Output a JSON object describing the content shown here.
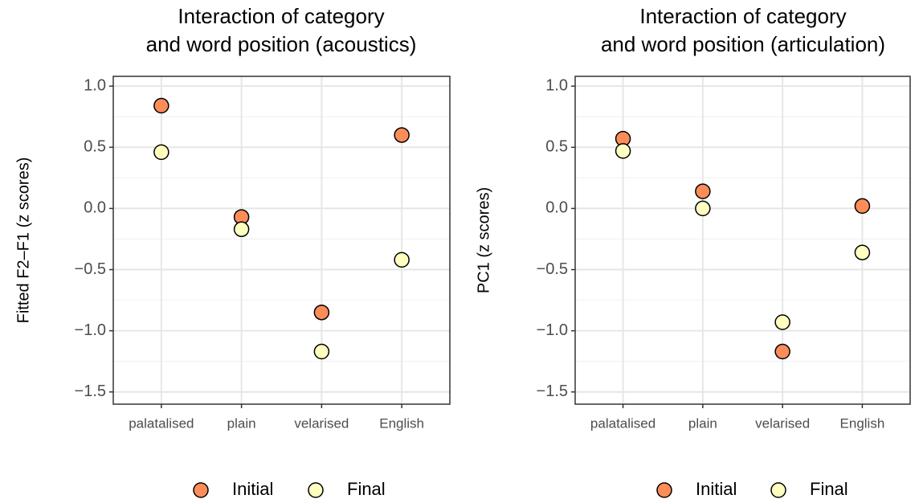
{
  "chart_data": [
    {
      "type": "scatter",
      "title": [
        "Interaction of category",
        "and word position (acoustics)"
      ],
      "y_label": "Fitted F2–F1 (z scores)",
      "categories": [
        "palatalised",
        "plain",
        "velarised",
        "English"
      ],
      "series": [
        {
          "name": "Initial",
          "color": "#fc8d59",
          "values": [
            0.84,
            -0.07,
            -0.85,
            0.6
          ]
        },
        {
          "name": "Final",
          "color": "#ffffbf",
          "values": [
            0.46,
            -0.17,
            -1.17,
            -0.42
          ]
        }
      ],
      "ylim": [
        -1.6,
        1.08
      ],
      "yticks": [
        {
          "value": 1.0,
          "label": "1.0"
        },
        {
          "value": 0.5,
          "label": "0.5"
        },
        {
          "value": 0.0,
          "label": "0.0"
        },
        {
          "value": -0.5,
          "label": "−0.5"
        },
        {
          "value": -1.0,
          "label": "−1.0"
        },
        {
          "value": -1.5,
          "label": "−1.5"
        }
      ],
      "grid": true,
      "legend": "bottom"
    },
    {
      "type": "scatter",
      "title": [
        "Interaction of category",
        "and word position (articulation)"
      ],
      "y_label": "PC1 (z scores)",
      "categories": [
        "palatalised",
        "plain",
        "velarised",
        "English"
      ],
      "series": [
        {
          "name": "Initial",
          "color": "#fc8d59",
          "values": [
            0.57,
            0.14,
            -1.17,
            0.02
          ]
        },
        {
          "name": "Final",
          "color": "#ffffbf",
          "values": [
            0.47,
            0.0,
            -0.93,
            -0.36
          ]
        }
      ],
      "ylim": [
        -1.6,
        1.08
      ],
      "yticks": [
        {
          "value": 1.0,
          "label": "1.0"
        },
        {
          "value": 0.5,
          "label": "0.5"
        },
        {
          "value": 0.0,
          "label": "0.0"
        },
        {
          "value": -0.5,
          "label": "−0.5"
        },
        {
          "value": -1.0,
          "label": "−1.0"
        },
        {
          "value": -1.5,
          "label": "−1.5"
        }
      ],
      "grid": true,
      "legend": "bottom"
    }
  ]
}
